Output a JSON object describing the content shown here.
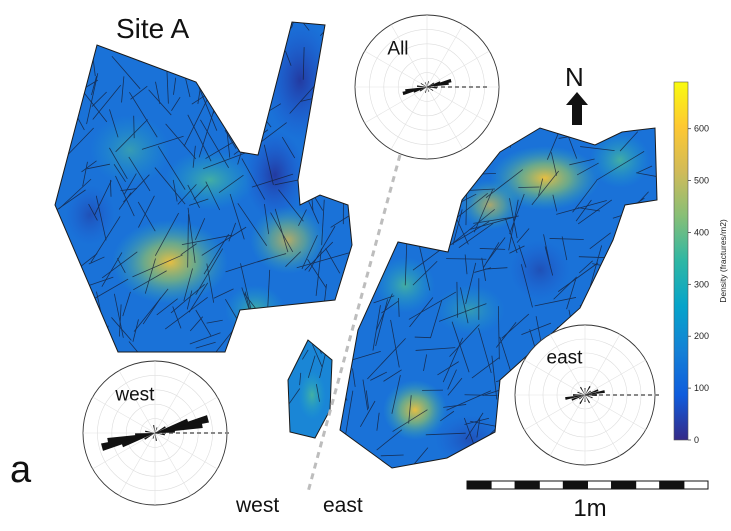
{
  "figure": {
    "title": "Site A",
    "panel_label": "a",
    "north_label": "N",
    "scale_label": "1m",
    "divider_labels": {
      "west": "west",
      "east": "east"
    }
  },
  "roses": [
    {
      "label": "All"
    },
    {
      "label": "west"
    },
    {
      "label": "east"
    }
  ],
  "colorbar": {
    "label": "Density (fractures/m2)",
    "ticks": [
      "0",
      "100",
      "200",
      "300",
      "400",
      "500",
      "600"
    ],
    "tick_values": [
      0,
      100,
      200,
      300,
      400,
      500,
      600
    ],
    "range": [
      0,
      690
    ],
    "colors": [
      "#352a87",
      "#0f5cdd",
      "#1481d6",
      "#06a4ca",
      "#2eb7a4",
      "#87bf77",
      "#d1bb59",
      "#fec832",
      "#f9fb0e"
    ]
  }
}
